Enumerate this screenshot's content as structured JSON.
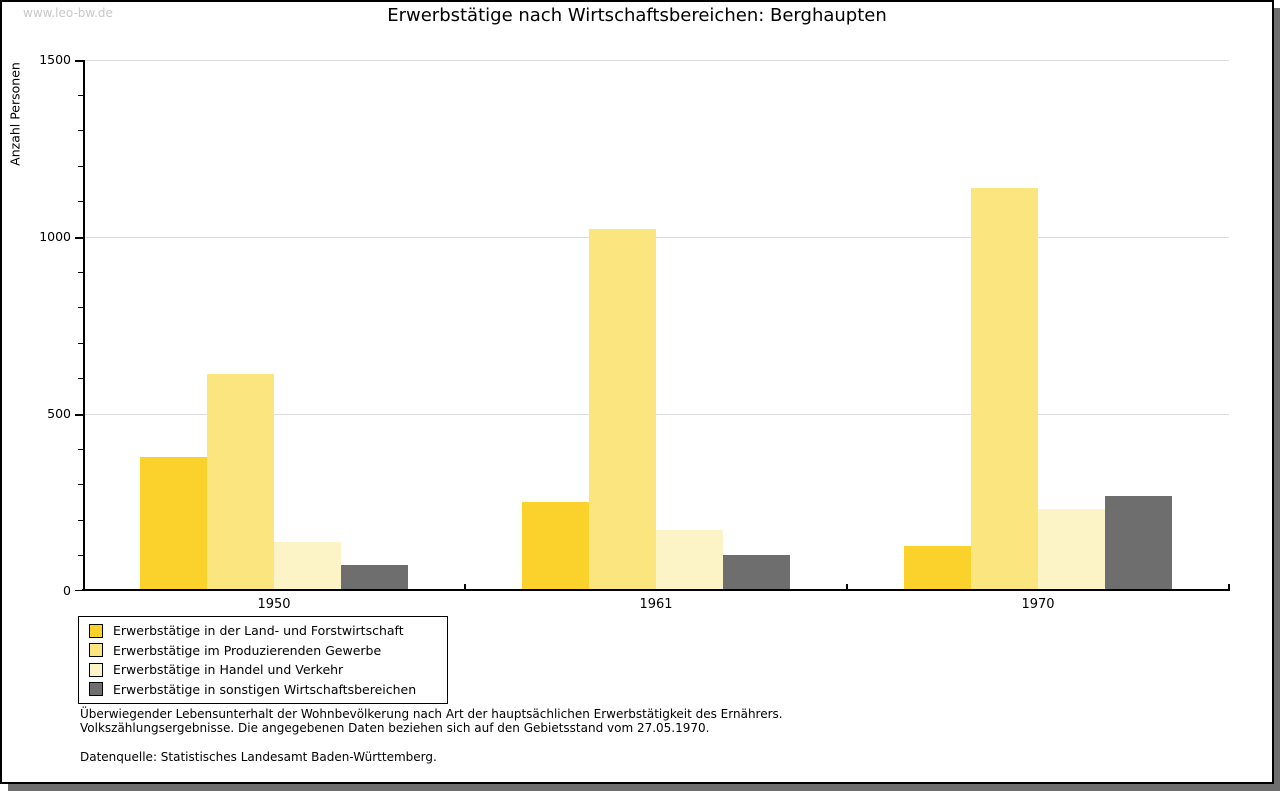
{
  "watermark": "www.leo-bw.de",
  "title": "Erwerbstätige nach Wirtschaftsbereichen: Berghaupten",
  "chart_data": {
    "type": "bar",
    "title": "Erwerbstätige nach Wirtschaftsbereichen: Berghaupten",
    "xlabel": "",
    "ylabel": "Anzahl Personen",
    "ylim": [
      0,
      1500
    ],
    "ytick_major": 500,
    "ytick_minor": 100,
    "ytick_labels": [
      "0",
      "500",
      "1000",
      "1500"
    ],
    "grid": "horizontal-major-light",
    "legend_position": "bottom-left-boxed",
    "categories": [
      "1950",
      "1961",
      "1970"
    ],
    "series": [
      {
        "name": "Erwerbstätige in der Land- und Forstwirtschaft",
        "color": "#FBD12B",
        "values": [
          375,
          250,
          125
        ]
      },
      {
        "name": "Erwerbstätige im Produzierenden Gewerbe",
        "color": "#FAE57E",
        "values": [
          610,
          1020,
          1135
        ]
      },
      {
        "name": "Erwerbstätige in Handel und Verkehr",
        "color": "#FCF3C6",
        "values": [
          135,
          170,
          230
        ]
      },
      {
        "name": "Erwerbstätige in sonstigen Wirtschaftsbereichen",
        "color": "#6E6E6E",
        "values": [
          70,
          100,
          265
        ]
      }
    ]
  },
  "footnotes": {
    "line1": "Überwiegender Lebensunterhalt der Wohnbevölkerung nach Art der hauptsächlichen Erwerbstätigkeit des Ernährers.",
    "line2": "Volkszählungsergebnisse. Die angegebenen Daten beziehen sich auf den Gebietsstand vom 27.05.1970.",
    "source": "Datenquelle: Statistisches Landesamt Baden-Württemberg."
  },
  "colors": {
    "background": "#FFFFFF",
    "frame_border": "#000000",
    "frame_shadow": "#6E6E6E",
    "gridline": "#DCDCDC",
    "axis": "#000000",
    "watermark": "#C8C8C8"
  }
}
